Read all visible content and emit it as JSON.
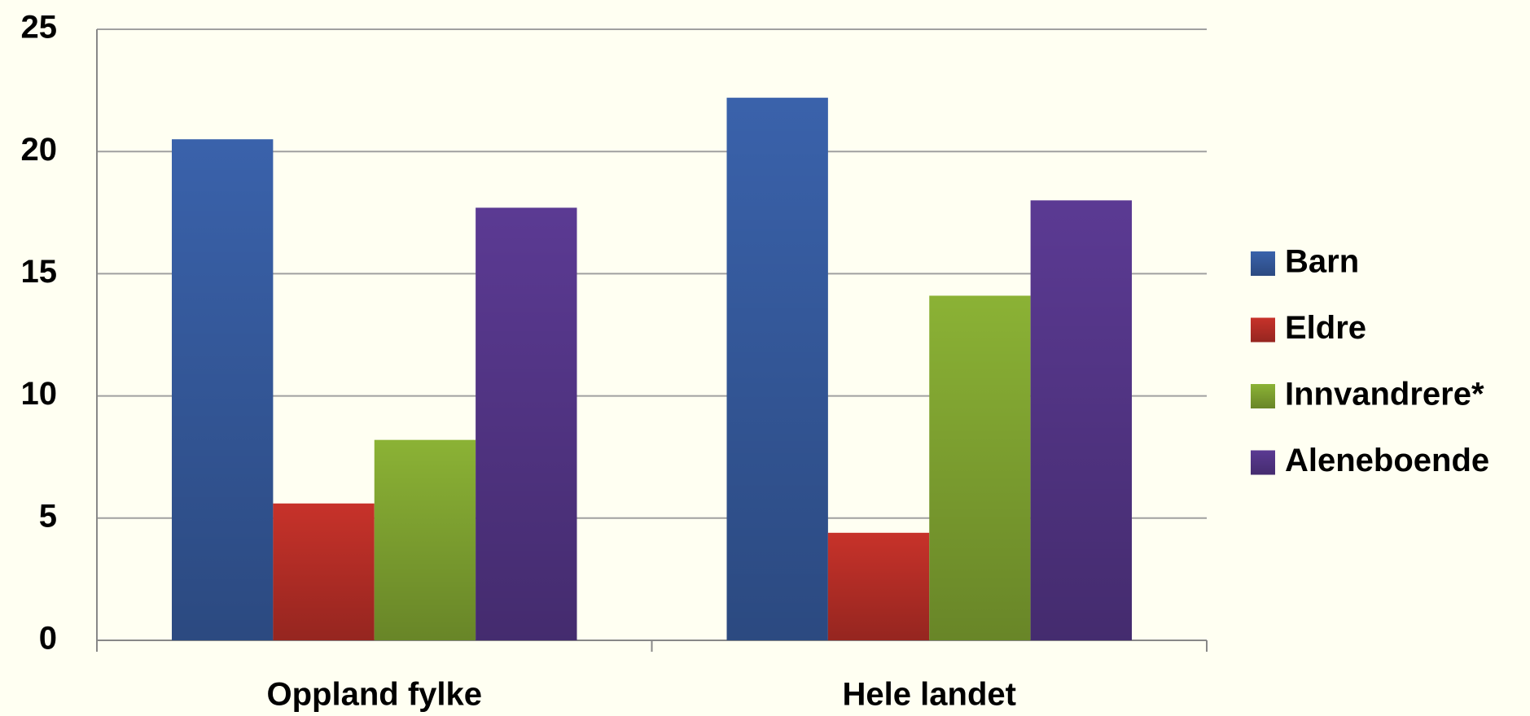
{
  "chart_data": {
    "type": "bar",
    "categories": [
      "Oppland fylke",
      "Hele landet"
    ],
    "series": [
      {
        "name": "Barn",
        "color": "#3a62ab",
        "values": [
          20.5,
          22.2
        ]
      },
      {
        "name": "Eldre",
        "color": "#c7322a",
        "values": [
          5.6,
          4.4
        ]
      },
      {
        "name": "Innvandrere*",
        "color": "#8bb235",
        "values": [
          8.2,
          14.1
        ]
      },
      {
        "name": "Aleneboende",
        "color": "#5b3a93",
        "values": [
          17.7,
          18.0
        ]
      }
    ],
    "ylim": [
      0,
      25
    ],
    "yticks": [
      0,
      5,
      10,
      15,
      20,
      25
    ],
    "grid": true,
    "legend": "right"
  }
}
